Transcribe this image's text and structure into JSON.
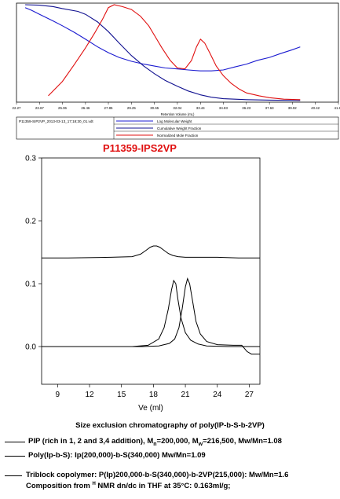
{
  "chart_data": [
    {
      "type": "line",
      "title": "",
      "xlabel": "Retention Volume (mL)",
      "ylabel": "",
      "xlim": [
        22.27,
        41.82
      ],
      "ylim": [
        0,
        1
      ],
      "x_ticks": [
        "22.27",
        "23.67",
        "25.06",
        "26.46",
        "27.85",
        "29.25",
        "30.65",
        "32.04",
        "33.44",
        "34.83",
        "36.23",
        "37.63",
        "39.02",
        "40.42",
        "41.82"
      ],
      "file_label": "P11359-SIP2VP_2013-03-13_17;18;30_01.vdt",
      "legend": [
        "Log Molecular Weight",
        "Cumulative Weight Fraction",
        "Normalized Mole Fraction"
      ],
      "series": [
        {
          "name": "Log Molecular Weight",
          "color": "#1a1ad0",
          "x": [
            22.8,
            23.2,
            23.67,
            24.5,
            25.06,
            25.8,
            26.46,
            27.2,
            27.85,
            28.5,
            29.25,
            30.0,
            30.65,
            31.3,
            32.04,
            32.7,
            33.44,
            34.1,
            34.83,
            35.5,
            36.23,
            36.9,
            37.63,
            38.3,
            39.02,
            39.5
          ],
          "y": [
            0.97,
            0.94,
            0.9,
            0.83,
            0.78,
            0.71,
            0.64,
            0.56,
            0.5,
            0.45,
            0.41,
            0.38,
            0.36,
            0.34,
            0.33,
            0.32,
            0.31,
            0.31,
            0.32,
            0.35,
            0.38,
            0.42,
            0.45,
            0.49,
            0.53,
            0.56
          ]
        },
        {
          "name": "Cumulative Weight Fraction",
          "color": "#101090",
          "x": [
            22.8,
            23.67,
            24.5,
            25.06,
            26.0,
            26.46,
            27.2,
            27.85,
            28.5,
            29.25,
            30.0,
            30.65,
            31.3,
            32.04,
            32.7,
            33.44,
            34.1,
            34.83,
            36.23,
            37.63,
            39.02,
            39.5
          ],
          "y": [
            1.0,
            0.995,
            0.98,
            0.96,
            0.93,
            0.9,
            0.82,
            0.72,
            0.6,
            0.47,
            0.36,
            0.28,
            0.21,
            0.15,
            0.1,
            0.06,
            0.035,
            0.02,
            0.01,
            0.005,
            0.002,
            0.0
          ]
        },
        {
          "name": "Normalized Mole Fraction",
          "color": "#e01010",
          "x": [
            24.2,
            25.06,
            25.8,
            26.46,
            27.0,
            27.5,
            27.85,
            28.2,
            28.7,
            29.25,
            29.8,
            30.3,
            30.65,
            31.1,
            31.6,
            32.04,
            32.5,
            32.9,
            33.2,
            33.44,
            33.7,
            34.0,
            34.4,
            34.83,
            35.3,
            35.8,
            36.23,
            37.0,
            37.63,
            38.5,
            39.5
          ],
          "y": [
            0.05,
            0.2,
            0.38,
            0.55,
            0.7,
            0.85,
            0.97,
            1.0,
            0.98,
            0.95,
            0.88,
            0.78,
            0.68,
            0.55,
            0.42,
            0.34,
            0.33,
            0.42,
            0.56,
            0.64,
            0.6,
            0.5,
            0.36,
            0.26,
            0.18,
            0.12,
            0.08,
            0.05,
            0.03,
            0.015,
            0.01
          ]
        }
      ]
    },
    {
      "type": "line",
      "title": "P11359-IPS2VP",
      "subtitle": "Size exclusion chromatography of poly(IP-b-S-b-2VP)",
      "xlabel": "Ve (ml)",
      "ylabel": "",
      "xlim": [
        7.5,
        28
      ],
      "ylim": [
        -0.06,
        0.3
      ],
      "x_ticks": [
        "9",
        "12",
        "15",
        "18",
        "21",
        "24",
        "27"
      ],
      "y_ticks": [
        "0.0",
        "0.1",
        "0.2",
        "0.3"
      ],
      "grid": false,
      "series": [
        {
          "name": "PIP (rich in 1, 2 and 3,4 addition), Mn=200,000, Mw=216,500, Mw/Mn=1.08",
          "color": "#000000",
          "x": [
            7.5,
            10,
            14,
            16,
            16.8,
            17.3,
            17.7,
            18.0,
            18.3,
            18.6,
            19.0,
            19.4,
            19.8,
            20.3,
            21.0,
            22,
            24,
            26,
            28
          ],
          "y": [
            0.141,
            0.141,
            0.142,
            0.143,
            0.147,
            0.153,
            0.158,
            0.16,
            0.16,
            0.158,
            0.153,
            0.148,
            0.145,
            0.143,
            0.142,
            0.142,
            0.142,
            0.141,
            0.141
          ]
        },
        {
          "name": "Poly(Ip-b-S): Ip(200,000)-b-S(340,000) Mw/Mn=1.09",
          "color": "#000000",
          "x": [
            7.5,
            12,
            16,
            17.5,
            18.5,
            19.0,
            19.4,
            19.7,
            19.9,
            20.1,
            20.3,
            20.6,
            21.0,
            21.5,
            22.2,
            23,
            25,
            28
          ],
          "y": [
            0,
            0,
            0,
            0.002,
            0.012,
            0.03,
            0.06,
            0.09,
            0.105,
            0.1,
            0.075,
            0.045,
            0.022,
            0.01,
            0.004,
            0.001,
            0,
            0
          ]
        },
        {
          "name": "Triblock copolymer: P(Ip)200,000-b-S(340,000)b-2VP(215,000): Mw/Mn=1.6",
          "color": "#000000",
          "x": [
            7.5,
            12,
            17,
            18.5,
            19.5,
            20.0,
            20.4,
            20.7,
            21.0,
            21.2,
            21.4,
            21.7,
            22.0,
            22.4,
            23.0,
            24,
            25.5,
            26.3,
            26.8,
            27.2,
            28
          ],
          "y": [
            0,
            0,
            0,
            0.001,
            0.005,
            0.012,
            0.03,
            0.06,
            0.095,
            0.108,
            0.1,
            0.07,
            0.04,
            0.02,
            0.008,
            0.003,
            0.002,
            0.002,
            -0.008,
            -0.012,
            -0.012
          ]
        }
      ]
    }
  ],
  "legend_text": {
    "pip_prefix": "PIP (rich in 1, 2 and 3,4  addition), M",
    "pip_n_sub": "n",
    "pip_mid": "=200,000, M",
    "pip_w_sub": "w",
    "pip_suffix": "=216,500, Mw/Mn=1.08",
    "polyipbs": "Poly(Ip-b-S): Ip(200,000)-b-S(340,000)  Mw/Mn=1.09",
    "triblock": "Triblock copolymer:  P(Ip)200,000-b-S(340,000)-b-2VP(215,000): Mw/Mn=1.6",
    "composition_prefix": "Composition from ",
    "composition_sup": "H",
    "composition_suffix": " NMR dn/dc in THF at 35°C: 0.163ml/g;"
  }
}
